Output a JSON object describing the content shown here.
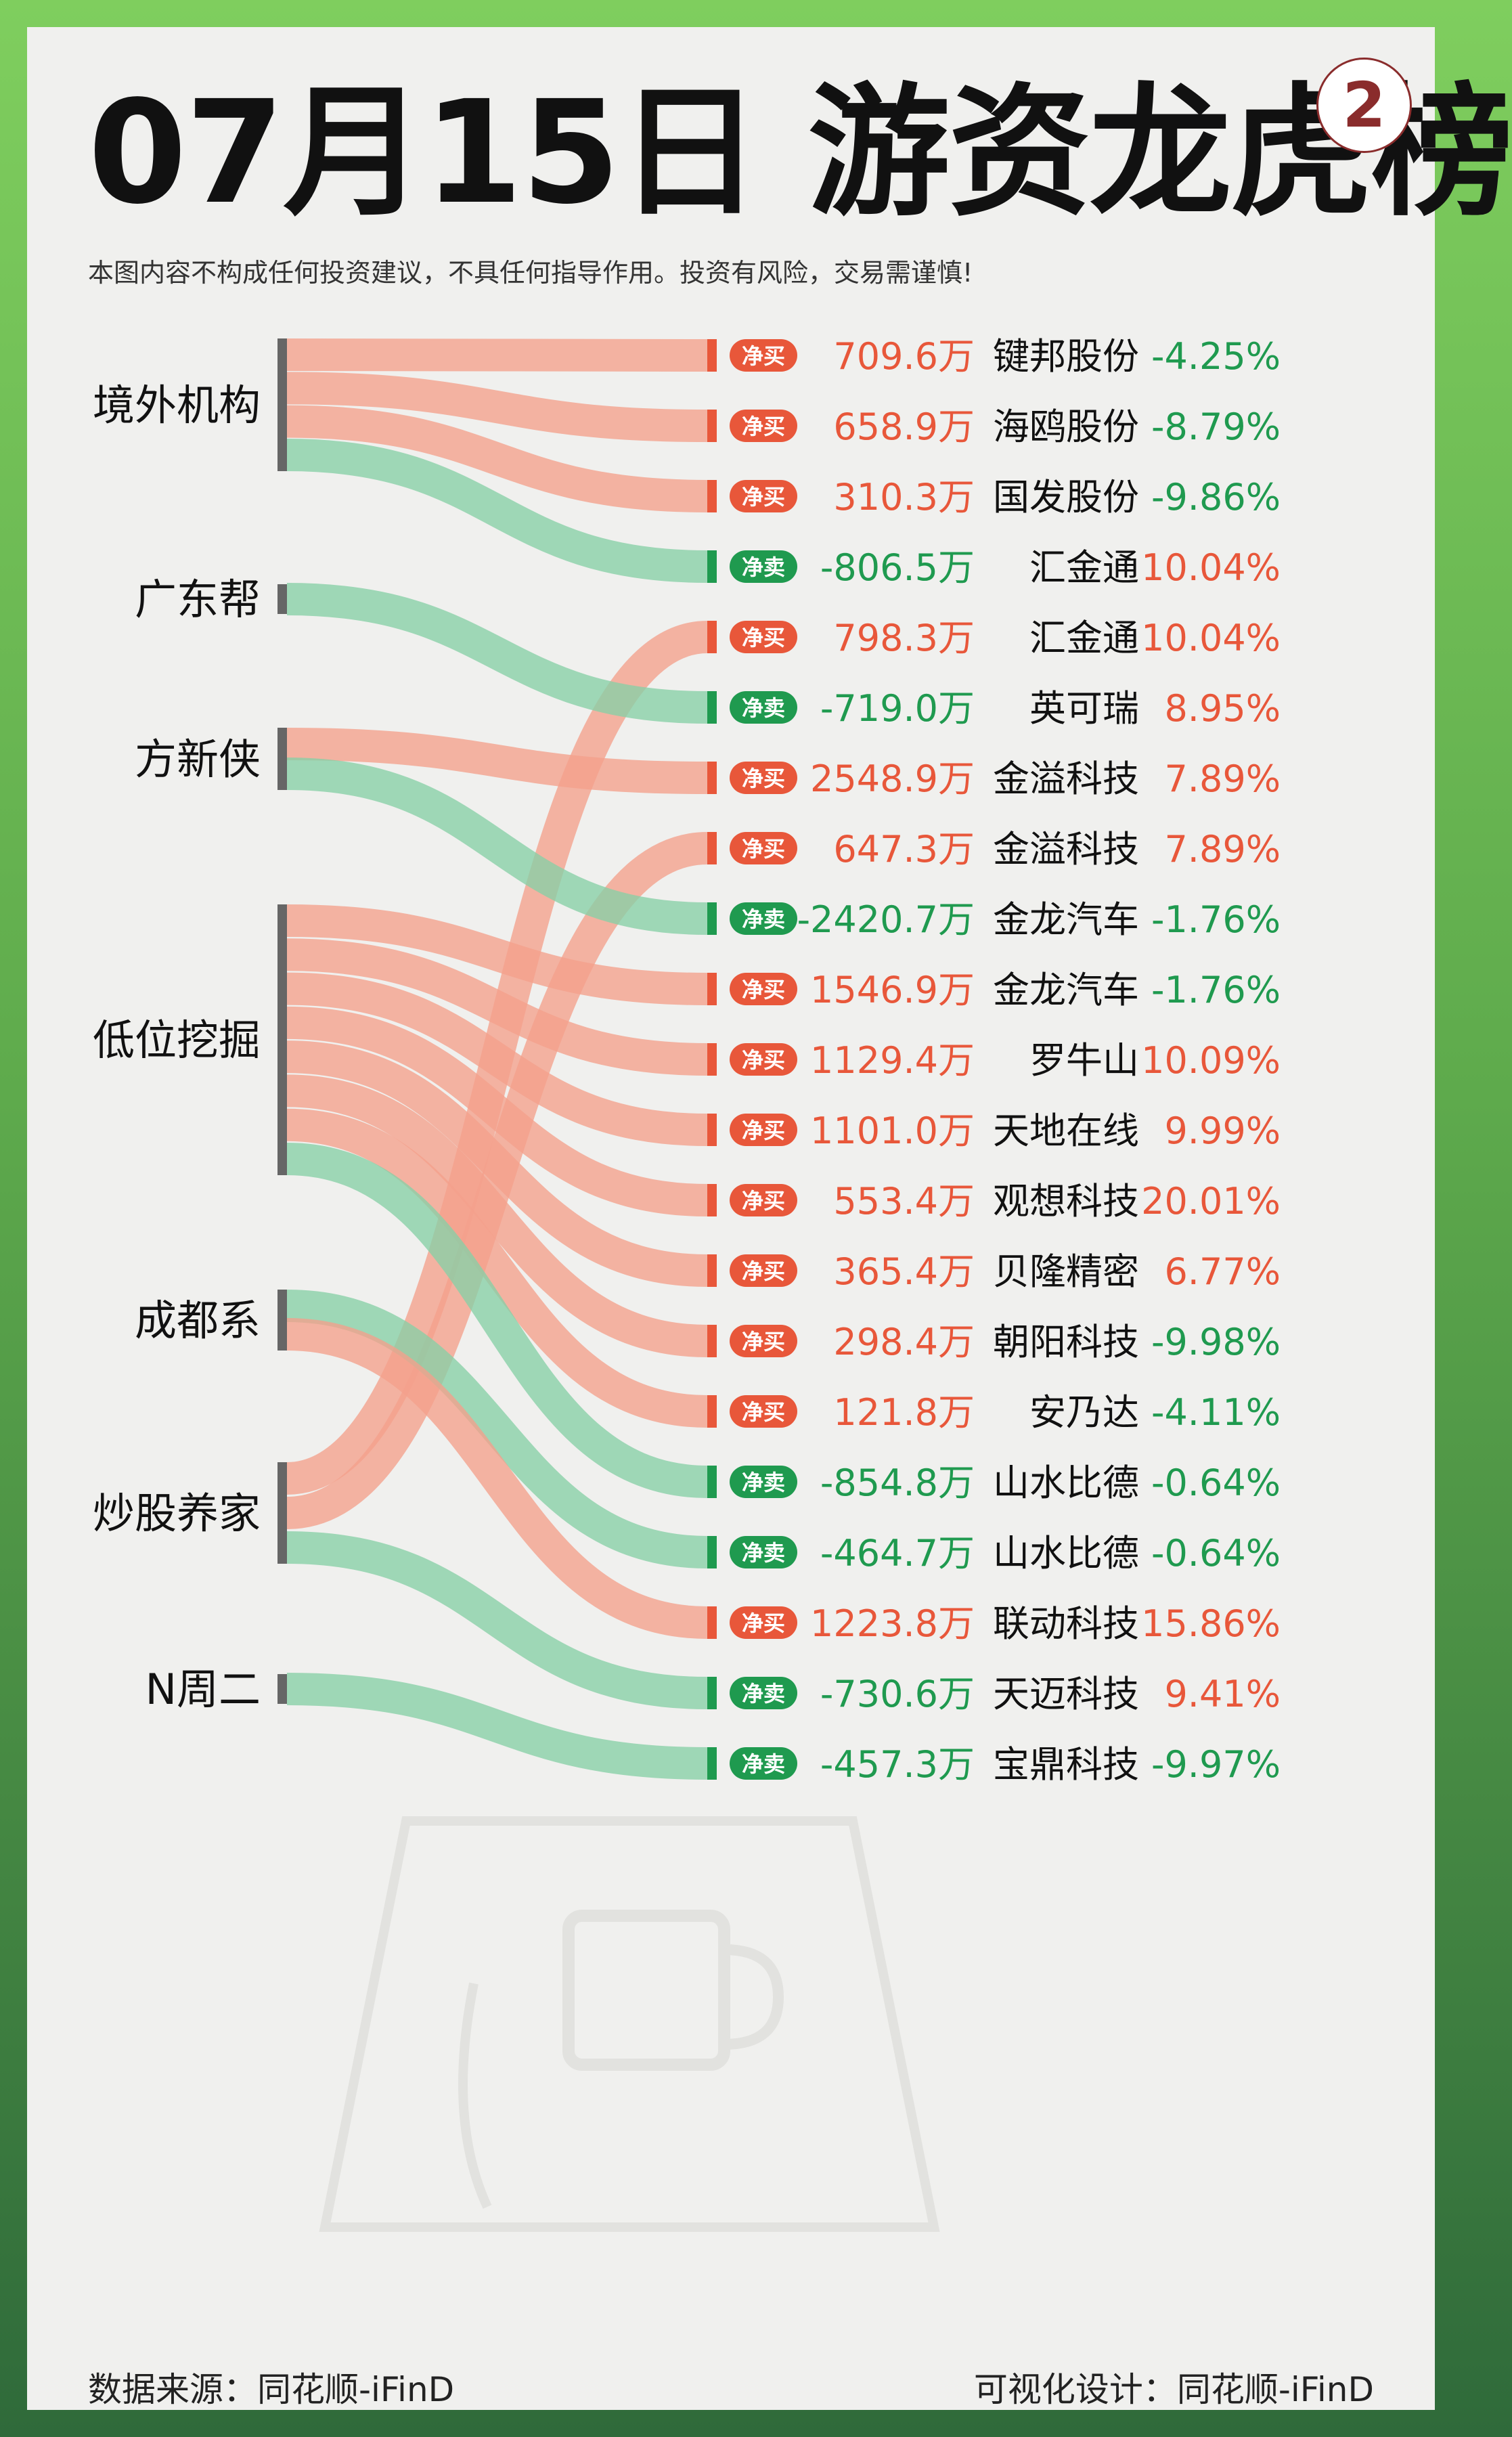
{
  "title": "07月15日 游资龙虎榜",
  "badge": "2",
  "disclaimer": "本图内容不构成任何投资建议，不具任何指导作用。投资有风险，交易需谨慎!",
  "footer": {
    "source": "数据来源：同花顺-iFinD",
    "design": "可视化设计：同花顺-iFinD"
  },
  "colors": {
    "buy": "#e8573a",
    "sell": "#1f9a4f",
    "buy_flow": "#f4a08c",
    "sell_flow": "#86d0a6",
    "node_bar": "#666666"
  },
  "chart_data": {
    "type": "sankey",
    "buy_tag": "净买",
    "sell_tag": "净卖",
    "sources": [
      "境外机构",
      "广东帮",
      "方新侠",
      "低位挖掘",
      "成都系",
      "炒股养家",
      "N周二"
    ],
    "flows": [
      {
        "source": "境外机构",
        "tag": "净买",
        "amount": "709.6万",
        "value": 709.6,
        "stock": "键邦股份",
        "change": "-4.25%"
      },
      {
        "source": "境外机构",
        "tag": "净买",
        "amount": "658.9万",
        "value": 658.9,
        "stock": "海鸥股份",
        "change": "-8.79%"
      },
      {
        "source": "境外机构",
        "tag": "净买",
        "amount": "310.3万",
        "value": 310.3,
        "stock": "国发股份",
        "change": "-9.86%"
      },
      {
        "source": "境外机构",
        "tag": "净卖",
        "amount": "-806.5万",
        "value": -806.5,
        "stock": "汇金通",
        "change": "10.04%"
      },
      {
        "source": "炒股养家",
        "tag": "净买",
        "amount": "798.3万",
        "value": 798.3,
        "stock": "汇金通",
        "change": "10.04%"
      },
      {
        "source": "广东帮",
        "tag": "净卖",
        "amount": "-719.0万",
        "value": -719.0,
        "stock": "英可瑞",
        "change": "8.95%"
      },
      {
        "source": "方新侠",
        "tag": "净买",
        "amount": "2548.9万",
        "value": 2548.9,
        "stock": "金溢科技",
        "change": "7.89%"
      },
      {
        "source": "炒股养家",
        "tag": "净买",
        "amount": "647.3万",
        "value": 647.3,
        "stock": "金溢科技",
        "change": "7.89%"
      },
      {
        "source": "方新侠",
        "tag": "净卖",
        "amount": "-2420.7万",
        "value": -2420.7,
        "stock": "金龙汽车",
        "change": "-1.76%"
      },
      {
        "source": "低位挖掘",
        "tag": "净买",
        "amount": "1546.9万",
        "value": 1546.9,
        "stock": "金龙汽车",
        "change": "-1.76%"
      },
      {
        "source": "低位挖掘",
        "tag": "净买",
        "amount": "1129.4万",
        "value": 1129.4,
        "stock": "罗牛山",
        "change": "10.09%"
      },
      {
        "source": "低位挖掘",
        "tag": "净买",
        "amount": "1101.0万",
        "value": 1101.0,
        "stock": "天地在线",
        "change": "9.99%"
      },
      {
        "source": "低位挖掘",
        "tag": "净买",
        "amount": "553.4万",
        "value": 553.4,
        "stock": "观想科技",
        "change": "20.01%"
      },
      {
        "source": "低位挖掘",
        "tag": "净买",
        "amount": "365.4万",
        "value": 365.4,
        "stock": "贝隆精密",
        "change": "6.77%"
      },
      {
        "source": "低位挖掘",
        "tag": "净买",
        "amount": "298.4万",
        "value": 298.4,
        "stock": "朝阳科技",
        "change": "-9.98%"
      },
      {
        "source": "低位挖掘",
        "tag": "净买",
        "amount": "121.8万",
        "value": 121.8,
        "stock": "安乃达",
        "change": "-4.11%"
      },
      {
        "source": "低位挖掘",
        "tag": "净卖",
        "amount": "-854.8万",
        "value": -854.8,
        "stock": "山水比德",
        "change": "-0.64%"
      },
      {
        "source": "成都系",
        "tag": "净卖",
        "amount": "-464.7万",
        "value": -464.7,
        "stock": "山水比德",
        "change": "-0.64%"
      },
      {
        "source": "成都系",
        "tag": "净买",
        "amount": "1223.8万",
        "value": 1223.8,
        "stock": "联动科技",
        "change": "15.86%"
      },
      {
        "source": "炒股养家",
        "tag": "净卖",
        "amount": "-730.6万",
        "value": -730.6,
        "stock": "天迈科技",
        "change": "9.41%"
      },
      {
        "source": "N周二",
        "tag": "净卖",
        "amount": "-457.3万",
        "value": -457.3,
        "stock": "宝鼎科技",
        "change": "-9.97%"
      }
    ]
  }
}
